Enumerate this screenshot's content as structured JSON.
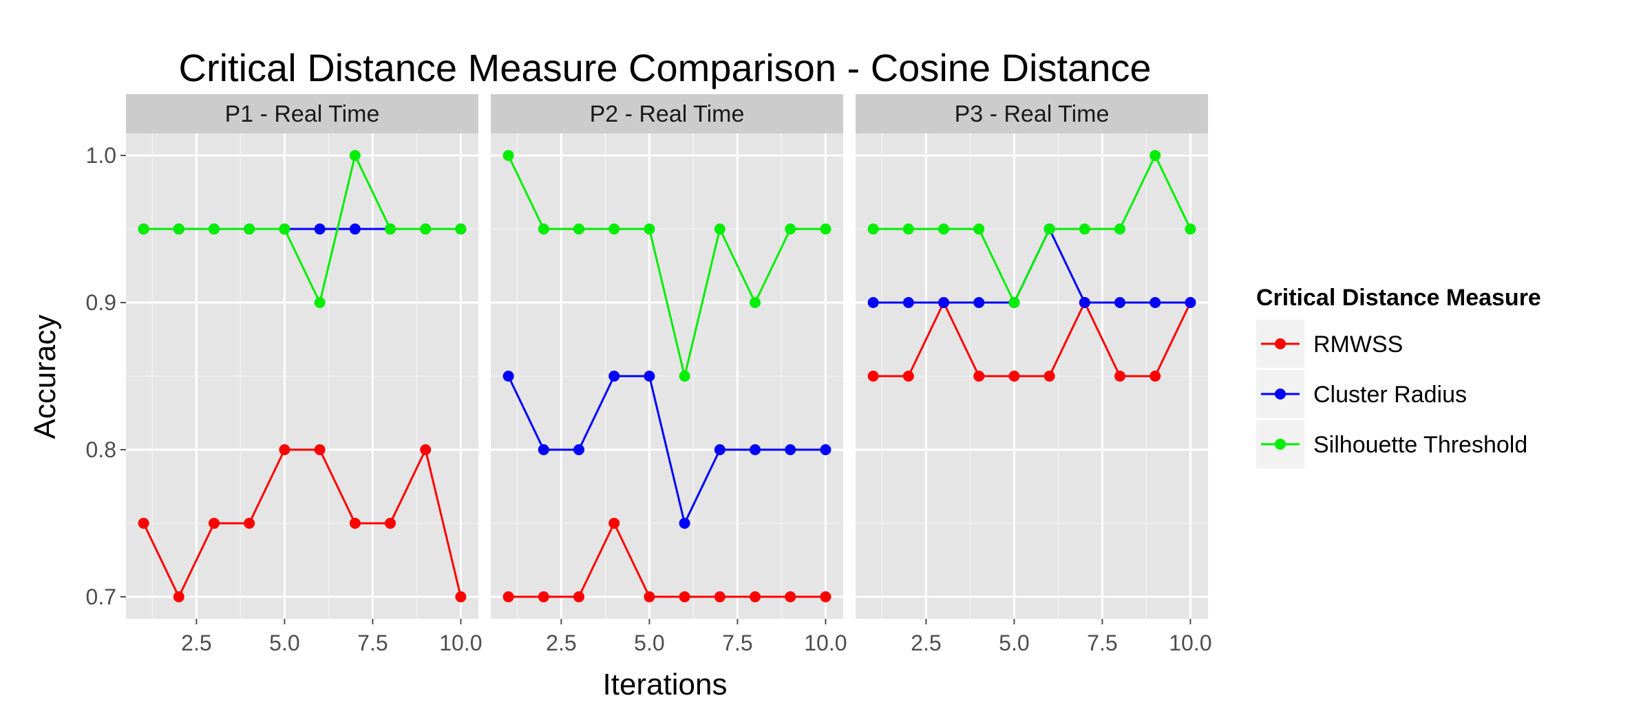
{
  "chart_data": {
    "type": "line",
    "title": "Critical Distance Measure Comparison - Cosine Distance",
    "xlabel": "Iterations",
    "ylabel": "Accuracy",
    "xlim": [
      0.5,
      10.5
    ],
    "ylim": [
      0.685,
      1.015
    ],
    "x_ticks": [
      2.5,
      5.0,
      7.5,
      10.0
    ],
    "x_tick_labels": [
      "2.5",
      "5.0",
      "7.5",
      "10.0"
    ],
    "y_ticks": [
      0.7,
      0.8,
      0.9,
      1.0
    ],
    "y_tick_labels": [
      "0.7",
      "0.8",
      "0.9",
      "1.0"
    ],
    "grid": true,
    "legend": {
      "title": "Critical Distance Measure",
      "position": "right",
      "entries": [
        {
          "name": "RMWSS",
          "color": "#ff0000"
        },
        {
          "name": "Cluster Radius",
          "color": "#0000ff"
        },
        {
          "name": "Silhouette Threshold",
          "color": "#00ee00"
        }
      ]
    },
    "x": [
      1,
      2,
      3,
      4,
      5,
      6,
      7,
      8,
      9,
      10
    ],
    "panels": [
      {
        "label": "P1 - Real Time",
        "series": [
          {
            "name": "RMWSS",
            "values": [
              0.75,
              0.7,
              0.75,
              0.75,
              0.8,
              0.8,
              0.75,
              0.75,
              0.8,
              0.7
            ]
          },
          {
            "name": "Cluster Radius",
            "values": [
              0.95,
              0.95,
              0.95,
              0.95,
              0.95,
              0.95,
              0.95,
              0.95,
              0.95,
              0.95
            ]
          },
          {
            "name": "Silhouette Threshold",
            "values": [
              0.95,
              0.95,
              0.95,
              0.95,
              0.95,
              0.9,
              1.0,
              0.95,
              0.95,
              0.95
            ]
          }
        ]
      },
      {
        "label": "P2 - Real Time",
        "series": [
          {
            "name": "RMWSS",
            "values": [
              0.7,
              0.7,
              0.7,
              0.75,
              0.7,
              0.7,
              0.7,
              0.7,
              0.7,
              0.7
            ]
          },
          {
            "name": "Cluster Radius",
            "values": [
              0.85,
              0.8,
              0.8,
              0.85,
              0.85,
              0.75,
              0.8,
              0.8,
              0.8,
              0.8
            ]
          },
          {
            "name": "Silhouette Threshold",
            "values": [
              1.0,
              0.95,
              0.95,
              0.95,
              0.95,
              0.85,
              0.95,
              0.9,
              0.95,
              0.95
            ]
          }
        ]
      },
      {
        "label": "P3 - Real Time",
        "series": [
          {
            "name": "RMWSS",
            "values": [
              0.85,
              0.85,
              0.9,
              0.85,
              0.85,
              0.85,
              0.9,
              0.85,
              0.85,
              0.9
            ]
          },
          {
            "name": "Cluster Radius",
            "values": [
              0.9,
              0.9,
              0.9,
              0.9,
              0.9,
              0.95,
              0.9,
              0.9,
              0.9,
              0.9
            ]
          },
          {
            "name": "Silhouette Threshold",
            "values": [
              0.95,
              0.95,
              0.95,
              0.95,
              0.9,
              0.95,
              0.95,
              0.95,
              1.0,
              0.95
            ]
          }
        ]
      }
    ]
  }
}
